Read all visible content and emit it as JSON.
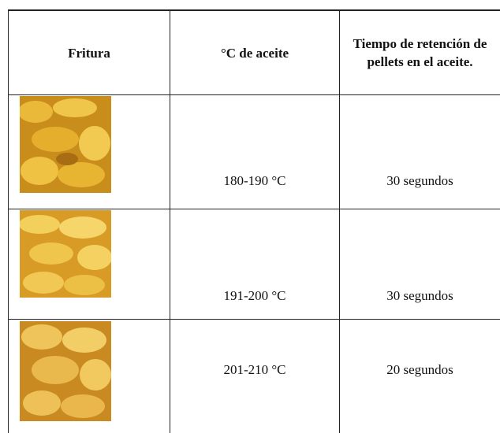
{
  "table": {
    "header": [
      "Fritura",
      "°C de aceite",
      "Tiempo de retención de pellets en el aceite."
    ],
    "rows": [
      [
        "180-190 °C",
        "30 segundos"
      ],
      [
        "191-200 °C",
        "30 segundos"
      ],
      [
        "201-210 °C",
        "20 segundos"
      ]
    ]
  }
}
